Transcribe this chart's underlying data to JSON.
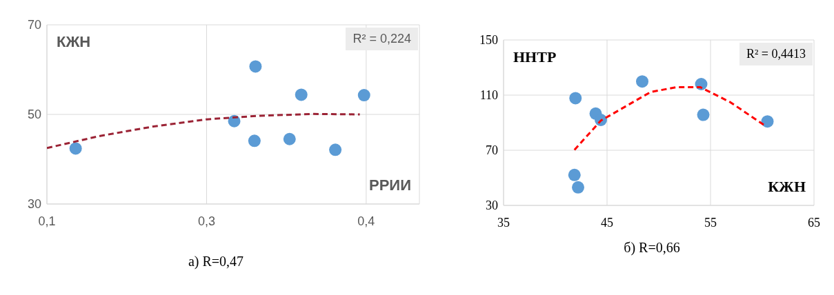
{
  "chart_data": [
    {
      "type": "scatter",
      "xlabel": "РРИИ",
      "ylabel": "КЖН",
      "annotations": [
        "R² = 0,224",
        "а) R=0,47"
      ],
      "xlim": [
        0.1,
        0.45
      ],
      "xticks": [
        {
          "value": 0.1,
          "label": "0,1"
        },
        {
          "value": 0.25,
          "label": "0,3"
        },
        {
          "value": 0.4,
          "label": "0,4"
        }
      ],
      "ylim": [
        30,
        70
      ],
      "yticks": [
        30,
        50,
        70
      ],
      "grid": true,
      "series": [
        {
          "marker": "circle",
          "color": "#5b9bd5",
          "x": [
            0.127,
            0.296,
            0.276,
            0.295,
            0.328,
            0.339,
            0.371,
            0.398
          ],
          "values": [
            42.4,
            60.7,
            48.5,
            44.1,
            44.5,
            54.4,
            42.1,
            54.3
          ]
        },
        {
          "type": "line",
          "color": "#9b2335",
          "line_style": "dashed",
          "x": [
            0.1,
            0.15,
            0.2,
            0.25,
            0.3,
            0.35,
            0.394
          ],
          "values": [
            42.5,
            45.2,
            47.3,
            48.9,
            49.7,
            50.1,
            50.0
          ]
        }
      ]
    },
    {
      "type": "scatter",
      "xlabel": "КЖН",
      "ylabel": "ННТР",
      "annotations": [
        "R² = 0,4413",
        "б) R=0,66"
      ],
      "xlim": [
        35,
        65
      ],
      "xticks": [
        35,
        45,
        55,
        65
      ],
      "ylim": [
        30,
        150
      ],
      "yticks": [
        30,
        70,
        110,
        150
      ],
      "grid": true,
      "series": [
        {
          "marker": "circle",
          "color": "#5b9bd5",
          "x": [
            41.95,
            43.9,
            44.4,
            48.4,
            54.1,
            54.3,
            60.5,
            41.85,
            42.2
          ],
          "values": [
            107.8,
            96.6,
            92.0,
            119.9,
            118.0,
            95.7,
            90.9,
            52.1,
            43.1
          ]
        },
        {
          "type": "line",
          "color": "#ff0000",
          "line_style": "dashed",
          "x": [
            41.85,
            44.4,
            49.2,
            51.7,
            54.0,
            56.9,
            60.4
          ],
          "values": [
            70.3,
            91.5,
            112.2,
            115.8,
            115.8,
            104.9,
            87.2
          ]
        }
      ]
    }
  ]
}
